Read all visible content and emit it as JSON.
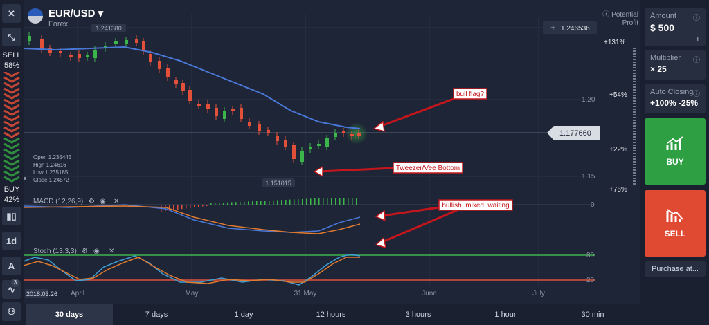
{
  "header": {
    "pair": "EUR/USD ▾",
    "market": "Forex",
    "potential_profit": "Potential Profit"
  },
  "left_toolbar": {
    "sell_label": "SELL",
    "sell_percent": "58%",
    "buy_label": "BUY",
    "buy_percent": "42%",
    "timeframe_label": "1d",
    "badge_count": "3"
  },
  "ohlc": {
    "open": "Open  1.235445",
    "high": "High  1.24616",
    "low": "Low  1.235185",
    "close": "Close  1.24572"
  },
  "price_tags": {
    "high_tag": "1.241380",
    "low_tag": "1.151015",
    "current_price": "1.177660",
    "top_right": "1.246536"
  },
  "axis": {
    "price_120": "1.20",
    "price_115": "1.15",
    "macd_zero": "0",
    "stoch_80": "80",
    "stoch_20": "20",
    "date_start": "2018.03.26",
    "months": [
      "April",
      "May",
      "31 May",
      "June",
      "July"
    ]
  },
  "profit_levels": [
    "+131%",
    "+54%",
    "+22%",
    "+76%"
  ],
  "indicators": {
    "macd": "MACD (12,26,9)",
    "stoch": "Stoch (13,3,3)"
  },
  "annotations": {
    "bull_flag": "bull flag?",
    "tweezer": "Tweezer/Vee Bottom",
    "bullish": "bullish, mixed, waiting"
  },
  "right_panel": {
    "amount_label": "Amount",
    "amount_value": "$ 500",
    "multiplier_label": "Multiplier",
    "multiplier_value": "× 25",
    "auto_label": "Auto Closing",
    "auto_value": "+100% -25%",
    "buy": "BUY",
    "sell": "SELL",
    "purchase_at": "Purchase at..."
  },
  "periods": [
    "30 days",
    "7 days",
    "1 day",
    "12 hours",
    "3 hours",
    "1 hour",
    "30 min"
  ],
  "colors": {
    "bg": "#1e2536",
    "buy": "#2ea043",
    "sell": "#e04a33",
    "up": "#3cb54a",
    "down": "#e2503a",
    "ma": "#4a78d8"
  }
}
